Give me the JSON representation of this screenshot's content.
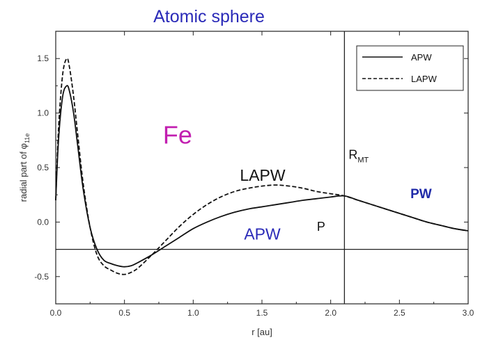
{
  "chart_data": {
    "type": "line",
    "title": "Atomic sphere",
    "xlabel": "r [au]",
    "ylabel": "radial part of φ",
    "ylabel_sub": "11e",
    "xlim": [
      0.0,
      3.0
    ],
    "ylim": [
      -0.75,
      1.75
    ],
    "x_ticks": [
      "0.0",
      "0.5",
      "1.0",
      "1.5",
      "2.0",
      "2.5",
      "3.0"
    ],
    "y_ticks": [
      "-0.5",
      "0.0",
      "0.5",
      "1.0",
      "1.5"
    ],
    "grid": false,
    "legend_position": "top-right",
    "series": [
      {
        "name": "APW",
        "style": "solid",
        "x": [
          0.0,
          0.02,
          0.05,
          0.08,
          0.1,
          0.13,
          0.16,
          0.2,
          0.25,
          0.3,
          0.35,
          0.4,
          0.45,
          0.5,
          0.55,
          0.6,
          0.7,
          0.8,
          0.9,
          1.0,
          1.1,
          1.2,
          1.3,
          1.4,
          1.5,
          1.6,
          1.7,
          1.8,
          1.9,
          2.0,
          2.1,
          2.2,
          2.3,
          2.4,
          2.5,
          2.6,
          2.7,
          2.8,
          2.9,
          3.0
        ],
        "y": [
          0.2,
          0.75,
          1.15,
          1.25,
          1.2,
          1.0,
          0.7,
          0.3,
          -0.05,
          -0.25,
          -0.35,
          -0.38,
          -0.4,
          -0.41,
          -0.4,
          -0.37,
          -0.3,
          -0.22,
          -0.14,
          -0.06,
          0.0,
          0.05,
          0.09,
          0.12,
          0.14,
          0.16,
          0.18,
          0.2,
          0.215,
          0.23,
          0.24,
          0.2,
          0.16,
          0.12,
          0.08,
          0.04,
          0.0,
          -0.03,
          -0.06,
          -0.08
        ]
      },
      {
        "name": "LAPW",
        "style": "dashed",
        "x": [
          0.0,
          0.02,
          0.05,
          0.08,
          0.1,
          0.13,
          0.16,
          0.2,
          0.25,
          0.3,
          0.35,
          0.4,
          0.45,
          0.5,
          0.55,
          0.6,
          0.7,
          0.8,
          0.9,
          1.0,
          1.1,
          1.2,
          1.3,
          1.4,
          1.5,
          1.6,
          1.7,
          1.8,
          1.9,
          2.0,
          2.1,
          2.2,
          2.3,
          2.4,
          2.5,
          2.6,
          2.7,
          2.8,
          2.9,
          3.0
        ],
        "y": [
          0.2,
          0.85,
          1.35,
          1.5,
          1.42,
          1.15,
          0.8,
          0.35,
          -0.05,
          -0.3,
          -0.4,
          -0.44,
          -0.47,
          -0.48,
          -0.46,
          -0.42,
          -0.3,
          -0.17,
          -0.04,
          0.07,
          0.16,
          0.23,
          0.28,
          0.31,
          0.33,
          0.34,
          0.33,
          0.31,
          0.28,
          0.26,
          0.24,
          0.2,
          0.16,
          0.12,
          0.08,
          0.04,
          0.0,
          -0.03,
          -0.06,
          -0.08
        ]
      }
    ],
    "reference_lines": [
      {
        "orientation": "vertical",
        "x": 2.1
      },
      {
        "orientation": "horizontal",
        "y": -0.25
      }
    ],
    "annotations": [
      {
        "text": "Fe",
        "x": 0.78,
        "y": 0.72
      },
      {
        "text": "LAPW",
        "x": 1.34,
        "y": 0.38
      },
      {
        "text": "APW",
        "x": 1.37,
        "y": -0.16
      },
      {
        "text": "P",
        "x": 1.9,
        "y": -0.08
      },
      {
        "text": "PW",
        "x": 2.58,
        "y": 0.22
      },
      {
        "text": "R",
        "sub": "MT",
        "x": 2.13,
        "y": 0.58
      }
    ]
  }
}
